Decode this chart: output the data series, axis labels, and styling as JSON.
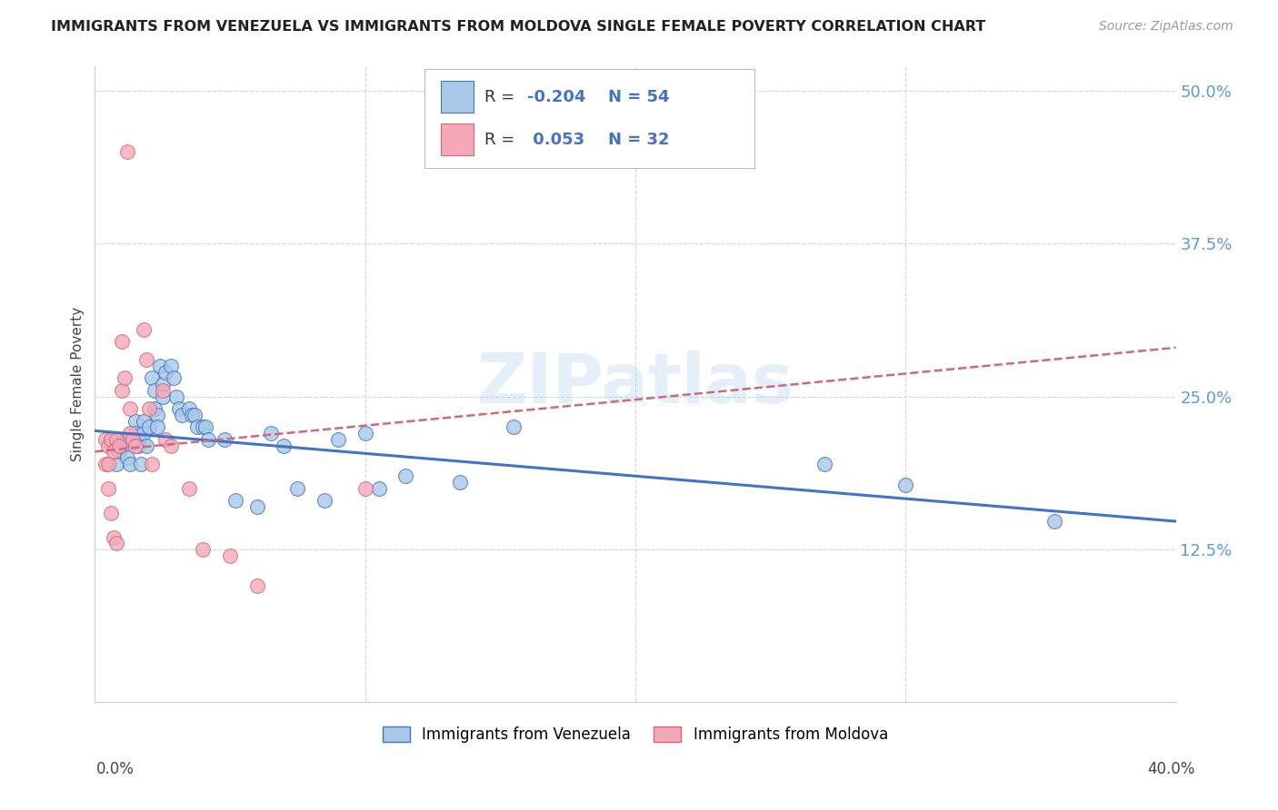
{
  "title": "IMMIGRANTS FROM VENEZUELA VS IMMIGRANTS FROM MOLDOVA SINGLE FEMALE POVERTY CORRELATION CHART",
  "source": "Source: ZipAtlas.com",
  "ylabel": "Single Female Poverty",
  "yticks": [
    0.0,
    0.125,
    0.25,
    0.375,
    0.5
  ],
  "ytick_labels": [
    "",
    "12.5%",
    "25.0%",
    "37.5%",
    "50.0%"
  ],
  "xlim": [
    0.0,
    0.4
  ],
  "ylim": [
    0.0,
    0.52
  ],
  "legend_r_venezuela": "-0.204",
  "legend_n_venezuela": "54",
  "legend_r_moldova": "0.053",
  "legend_n_moldova": "32",
  "color_venezuela": "#a8c8e8",
  "color_moldova": "#f4a8b8",
  "color_line_venezuela": "#4472c4",
  "color_line_moldova": "#d06878",
  "watermark": "ZIPatlas",
  "venezuela_x": [
    0.006,
    0.008,
    0.009,
    0.01,
    0.011,
    0.012,
    0.012,
    0.013,
    0.015,
    0.015,
    0.016,
    0.016,
    0.017,
    0.018,
    0.018,
    0.019,
    0.02,
    0.021,
    0.022,
    0.022,
    0.023,
    0.023,
    0.024,
    0.025,
    0.025,
    0.026,
    0.028,
    0.029,
    0.03,
    0.031,
    0.032,
    0.035,
    0.036,
    0.037,
    0.038,
    0.04,
    0.041,
    0.042,
    0.048,
    0.052,
    0.06,
    0.065,
    0.07,
    0.075,
    0.085,
    0.09,
    0.1,
    0.105,
    0.115,
    0.135,
    0.155,
    0.27,
    0.3,
    0.355
  ],
  "venezuela_y": [
    0.215,
    0.195,
    0.205,
    0.21,
    0.215,
    0.215,
    0.2,
    0.195,
    0.23,
    0.22,
    0.215,
    0.21,
    0.195,
    0.23,
    0.22,
    0.21,
    0.225,
    0.265,
    0.255,
    0.24,
    0.235,
    0.225,
    0.275,
    0.26,
    0.25,
    0.27,
    0.275,
    0.265,
    0.25,
    0.24,
    0.235,
    0.24,
    0.235,
    0.235,
    0.225,
    0.225,
    0.225,
    0.215,
    0.215,
    0.165,
    0.16,
    0.22,
    0.21,
    0.175,
    0.165,
    0.215,
    0.22,
    0.175,
    0.185,
    0.18,
    0.225,
    0.195,
    0.178,
    0.148
  ],
  "moldova_x": [
    0.004,
    0.004,
    0.005,
    0.005,
    0.005,
    0.006,
    0.006,
    0.007,
    0.007,
    0.008,
    0.008,
    0.009,
    0.01,
    0.01,
    0.011,
    0.012,
    0.013,
    0.013,
    0.014,
    0.015,
    0.018,
    0.019,
    0.02,
    0.021,
    0.025,
    0.026,
    0.028,
    0.035,
    0.04,
    0.05,
    0.06,
    0.1
  ],
  "moldova_y": [
    0.215,
    0.195,
    0.21,
    0.195,
    0.175,
    0.215,
    0.155,
    0.205,
    0.135,
    0.215,
    0.13,
    0.21,
    0.295,
    0.255,
    0.265,
    0.45,
    0.24,
    0.22,
    0.215,
    0.21,
    0.305,
    0.28,
    0.24,
    0.195,
    0.255,
    0.215,
    0.21,
    0.175,
    0.125,
    0.12,
    0.095,
    0.175
  ],
  "trendline_venezuela_x0": 0.0,
  "trendline_venezuela_x1": 0.4,
  "trendline_venezuela_y0": 0.222,
  "trendline_venezuela_y1": 0.148,
  "trendline_moldova_x0": 0.0,
  "trendline_moldova_x1": 0.4,
  "trendline_moldova_y0": 0.205,
  "trendline_moldova_y1": 0.29
}
